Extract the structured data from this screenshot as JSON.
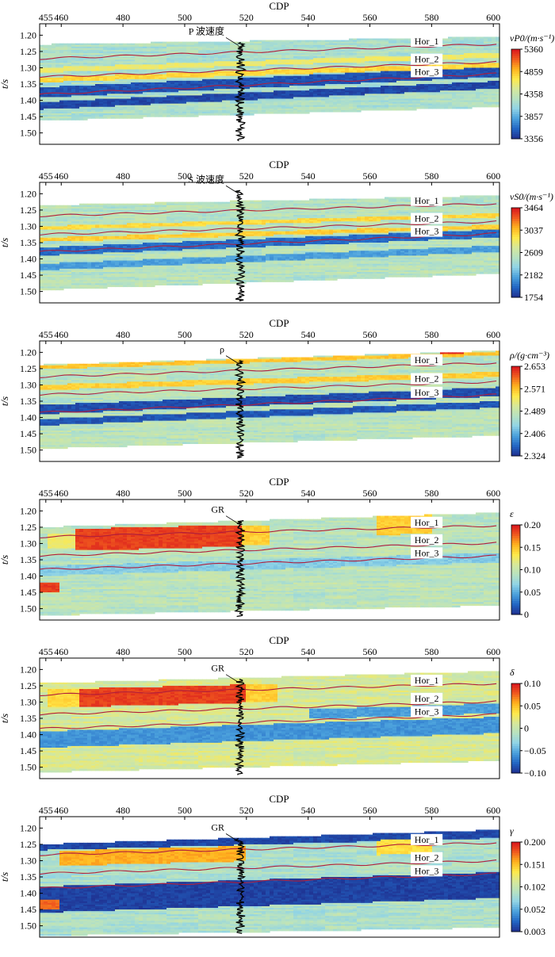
{
  "palette": {
    "jet": [
      "#1f2f8f",
      "#2266c4",
      "#4aa0dc",
      "#8fd3e6",
      "#b7e2c2",
      "#d6e89a",
      "#ffe94a",
      "#ffb21e",
      "#f05a1e",
      "#d8141e"
    ],
    "horizon_color": "#b01e3c",
    "log_color": "#000000"
  },
  "chart_data": [
    {
      "type": "heatmap",
      "id": "vp0",
      "title": "CDP",
      "xlabel": "CDP",
      "ylabel": "t/s",
      "xlim": [
        453,
        602
      ],
      "ylim": [
        1.165,
        1.535
      ],
      "x_ticks": [
        "455",
        "460",
        "480",
        "500",
        "520",
        "540",
        "560",
        "580",
        "600"
      ],
      "x_tick_values": [
        455,
        460,
        480,
        500,
        520,
        540,
        560,
        580,
        600
      ],
      "y_ticks": [
        "1.20",
        "1.25",
        "1.30",
        "1.35",
        "1.40",
        "1.45",
        "1.50"
      ],
      "y_tick_values": [
        1.2,
        1.25,
        1.3,
        1.35,
        1.4,
        1.45,
        1.5
      ],
      "colorbar": {
        "label": "vP0/(m·s⁻¹)",
        "ticks": [
          "5360",
          "4859",
          "4358",
          "3857",
          "3356"
        ]
      },
      "horizons": [
        {
          "name": "Hor_1",
          "start": 1.272,
          "end": 1.227
        },
        {
          "name": "Hor_2",
          "start": 1.328,
          "end": 1.282
        },
        {
          "name": "Hor_3",
          "start": 1.382,
          "end": 1.318
        }
      ],
      "log": {
        "label": "P 波速度",
        "cdp": 518,
        "top": 1.222,
        "bottom": 1.525
      },
      "data_top": [
        1.228,
        1.205
      ],
      "data_bottom": [
        1.462,
        1.42
      ],
      "base": 0.42,
      "anomalies": [
        {
          "cdp": [
            453,
            602
          ],
          "t": [
            1.36,
            1.392
          ],
          "v": 0.07,
          "follow": "Hor_3"
        },
        {
          "cdp": [
            453,
            602
          ],
          "t": [
            1.405,
            1.428
          ],
          "v": 0.05,
          "follow": "Hor_3"
        },
        {
          "cdp": [
            453,
            602
          ],
          "t": [
            1.3,
            1.315
          ],
          "v": 0.62,
          "follow": "Hor_2"
        },
        {
          "cdp": [
            453,
            602
          ],
          "t": [
            1.33,
            1.345
          ],
          "v": 0.7,
          "follow": "Hor_2"
        }
      ]
    },
    {
      "type": "heatmap",
      "id": "vs0",
      "title": "CDP",
      "xlabel": "CDP",
      "ylabel": "t/s",
      "xlim": [
        453,
        602
      ],
      "ylim": [
        1.165,
        1.535
      ],
      "x_ticks": [
        "455",
        "460",
        "480",
        "500",
        "520",
        "540",
        "560",
        "580",
        "600"
      ],
      "x_tick_values": [
        455,
        460,
        480,
        500,
        520,
        540,
        560,
        580,
        600
      ],
      "y_ticks": [
        "1.20",
        "1.25",
        "1.30",
        "1.35",
        "1.40",
        "1.45",
        "1.50"
      ],
      "y_tick_values": [
        1.2,
        1.25,
        1.3,
        1.35,
        1.4,
        1.45,
        1.5
      ],
      "colorbar": {
        "label": "vS0/(m·s⁻¹)",
        "ticks": [
          "3464",
          "3037",
          "2609",
          "2182",
          "1754"
        ]
      },
      "horizons": [
        {
          "name": "Hor_1",
          "start": 1.268,
          "end": 1.23
        },
        {
          "name": "Hor_2",
          "start": 1.325,
          "end": 1.285
        },
        {
          "name": "Hor_3",
          "start": 1.378,
          "end": 1.322
        }
      ],
      "log": {
        "label": "S 波速度",
        "cdp": 518,
        "top": 1.19,
        "bottom": 1.53
      },
      "data_top": [
        1.235,
        1.205
      ],
      "data_bottom": [
        1.495,
        1.445
      ],
      "base": 0.45,
      "anomalies": [
        {
          "cdp": [
            453,
            602
          ],
          "t": [
            1.365,
            1.39
          ],
          "v": 0.12,
          "follow": "Hor_3"
        },
        {
          "cdp": [
            453,
            602
          ],
          "t": [
            1.3,
            1.312
          ],
          "v": 0.7,
          "follow": "Hor_2"
        },
        {
          "cdp": [
            453,
            602
          ],
          "t": [
            1.335,
            1.348
          ],
          "v": 0.72,
          "follow": "Hor_2"
        },
        {
          "cdp": [
            453,
            602
          ],
          "t": [
            1.415,
            1.435
          ],
          "v": 0.22,
          "follow": "Hor_3"
        }
      ]
    },
    {
      "type": "heatmap",
      "id": "rho",
      "title": "CDP",
      "xlabel": "CDP",
      "ylabel": "t/s",
      "xlim": [
        453,
        602
      ],
      "ylim": [
        1.165,
        1.535
      ],
      "x_ticks": [
        "455",
        "460",
        "480",
        "500",
        "520",
        "540",
        "560",
        "580",
        "600"
      ],
      "x_tick_values": [
        455,
        460,
        480,
        500,
        520,
        540,
        560,
        580,
        600
      ],
      "y_ticks": [
        "1.20",
        "1.25",
        "1.30",
        "1.35",
        "1.40",
        "1.45",
        "1.50"
      ],
      "y_tick_values": [
        1.2,
        1.25,
        1.3,
        1.35,
        1.4,
        1.45,
        1.5
      ],
      "colorbar": {
        "label": "ρ/(g·cm⁻³)",
        "ticks": [
          "2.653",
          "2.571",
          "2.489",
          "2.406",
          "2.324"
        ]
      },
      "horizons": [
        {
          "name": "Hor_1",
          "start": 1.275,
          "end": 1.232
        },
        {
          "name": "Hor_2",
          "start": 1.33,
          "end": 1.29
        },
        {
          "name": "Hor_3",
          "start": 1.385,
          "end": 1.33
        }
      ],
      "log": {
        "label": "ρ",
        "cdp": 518,
        "top": 1.225,
        "bottom": 1.525
      },
      "data_top": [
        1.238,
        1.195
      ],
      "data_bottom": [
        1.495,
        1.455
      ],
      "base": 0.46,
      "anomalies": [
        {
          "cdp": [
            453,
            602
          ],
          "t": [
            1.362,
            1.39
          ],
          "v": 0.06,
          "follow": "Hor_3"
        },
        {
          "cdp": [
            453,
            602
          ],
          "t": [
            1.405,
            1.425
          ],
          "v": 0.08,
          "follow": "Hor_3"
        },
        {
          "cdp": [
            453,
            602
          ],
          "t": [
            1.3,
            1.316
          ],
          "v": 0.72,
          "follow": "Hor_2"
        },
        {
          "cdp": [
            453,
            602
          ],
          "t": [
            1.24,
            1.252
          ],
          "v": 0.74,
          "follow": "Hor_1"
        },
        {
          "cdp": [
            583,
            591
          ],
          "t": [
            1.192,
            1.205
          ],
          "v": 0.97,
          "follow": ""
        }
      ]
    },
    {
      "type": "heatmap",
      "id": "epsilon",
      "title": "CDP",
      "xlabel": "CDP",
      "ylabel": "t/s",
      "xlim": [
        453,
        602
      ],
      "ylim": [
        1.165,
        1.535
      ],
      "x_ticks": [
        "455",
        "460",
        "480",
        "500",
        "520",
        "540",
        "560",
        "580",
        "600"
      ],
      "x_tick_values": [
        455,
        460,
        480,
        500,
        520,
        540,
        560,
        580,
        600
      ],
      "y_ticks": [
        "1.20",
        "1.25",
        "1.30",
        "1.35",
        "1.40",
        "1.45",
        "1.50"
      ],
      "y_tick_values": [
        1.2,
        1.25,
        1.3,
        1.35,
        1.4,
        1.45,
        1.5
      ],
      "colorbar": {
        "label": "ε",
        "ticks": [
          "0.20",
          "0.15",
          "0.10",
          "0.05",
          "0"
        ]
      },
      "horizons": [
        {
          "name": "Hor_1",
          "start": 1.28,
          "end": 1.245
        },
        {
          "name": "Hor_2",
          "start": 1.338,
          "end": 1.298
        },
        {
          "name": "Hor_3",
          "start": 1.38,
          "end": 1.338
        }
      ],
      "log": {
        "label": "GR",
        "cdp": 518,
        "top": 1.23,
        "bottom": 1.525
      },
      "data_top": [
        1.25,
        1.205
      ],
      "data_bottom": [
        1.52,
        1.49
      ],
      "base": 0.46,
      "anomalies": [
        {
          "cdp": [
            464,
            519
          ],
          "t": [
            1.258,
            1.325
          ],
          "v": 0.93,
          "follow": "Hor_1"
        },
        {
          "cdp": [
            455,
            464
          ],
          "t": [
            1.272,
            1.318
          ],
          "v": 0.62,
          "follow": "Hor_1"
        },
        {
          "cdp": [
            519,
            527
          ],
          "t": [
            1.262,
            1.32
          ],
          "v": 0.72,
          "follow": "Hor_1"
        },
        {
          "cdp": [
            562,
            580
          ],
          "t": [
            1.24,
            1.3
          ],
          "v": 0.72,
          "follow": "Hor_1"
        },
        {
          "cdp": [
            453,
            602
          ],
          "t": [
            1.37,
            1.4
          ],
          "v": 0.32,
          "follow": "Hor_3"
        },
        {
          "cdp": [
            453,
            459
          ],
          "t": [
            1.42,
            1.452
          ],
          "v": 0.94,
          "follow": ""
        }
      ]
    },
    {
      "type": "heatmap",
      "id": "delta",
      "title": "CDP",
      "xlabel": "CDP",
      "ylabel": "t/s",
      "xlim": [
        453,
        602
      ],
      "ylim": [
        1.165,
        1.535
      ],
      "x_ticks": [
        "455",
        "460",
        "480",
        "500",
        "520",
        "540",
        "560",
        "580",
        "600"
      ],
      "x_tick_values": [
        455,
        460,
        480,
        500,
        520,
        540,
        560,
        580,
        600
      ],
      "y_ticks": [
        "1.20",
        "1.25",
        "1.30",
        "1.35",
        "1.40",
        "1.45",
        "1.50"
      ],
      "y_tick_values": [
        1.2,
        1.25,
        1.3,
        1.35,
        1.4,
        1.45,
        1.5
      ],
      "colorbar": {
        "label": "δ",
        "ticks": [
          "0.10",
          "0.05",
          "0",
          "−0.05",
          "−0.10"
        ]
      },
      "horizons": [
        {
          "name": "Hor_1",
          "start": 1.278,
          "end": 1.243
        },
        {
          "name": "Hor_2",
          "start": 1.338,
          "end": 1.298
        },
        {
          "name": "Hor_3",
          "start": 1.382,
          "end": 1.338
        }
      ],
      "log": {
        "label": "GR",
        "cdp": 518,
        "top": 1.23,
        "bottom": 1.525
      },
      "data_top": [
        1.242,
        1.205
      ],
      "data_bottom": [
        1.515,
        1.48
      ],
      "base": 0.55,
      "anomalies": [
        {
          "cdp": [
            466,
            520
          ],
          "t": [
            1.262,
            1.318
          ],
          "v": 0.93,
          "follow": "Hor_1"
        },
        {
          "cdp": [
            455,
            466
          ],
          "t": [
            1.262,
            1.318
          ],
          "v": 0.7,
          "follow": "Hor_1"
        },
        {
          "cdp": [
            520,
            530
          ],
          "t": [
            1.262,
            1.318
          ],
          "v": 0.72,
          "follow": "Hor_1"
        },
        {
          "cdp": [
            453,
            602
          ],
          "t": [
            1.39,
            1.44
          ],
          "v": 0.2,
          "follow": "Hor_3"
        },
        {
          "cdp": [
            540,
            602
          ],
          "t": [
            1.348,
            1.378
          ],
          "v": 0.22,
          "follow": "Hor_3"
        }
      ]
    },
    {
      "type": "heatmap",
      "id": "gamma",
      "title": "CDP",
      "xlabel": "CDP",
      "ylabel": "t/s",
      "xlim": [
        453,
        602
      ],
      "ylim": [
        1.165,
        1.535
      ],
      "x_ticks": [
        "455",
        "460",
        "480",
        "500",
        "520",
        "540",
        "560",
        "580",
        "600"
      ],
      "x_tick_values": [
        455,
        460,
        480,
        500,
        520,
        540,
        560,
        580,
        600
      ],
      "y_ticks": [
        "1.20",
        "1.25",
        "1.30",
        "1.35",
        "1.40",
        "1.45",
        "1.50"
      ],
      "y_tick_values": [
        1.2,
        1.25,
        1.3,
        1.35,
        1.4,
        1.45,
        1.5
      ],
      "colorbar": {
        "label": "γ",
        "ticks": [
          "0.200",
          "0.151",
          "0.102",
          "0.052",
          "0.003"
        ]
      },
      "horizons": [
        {
          "name": "Hor_1",
          "start": 1.282,
          "end": 1.245
        },
        {
          "name": "Hor_2",
          "start": 1.34,
          "end": 1.3
        },
        {
          "name": "Hor_3",
          "start": 1.385,
          "end": 1.34
        }
      ],
      "log": {
        "label": "GR",
        "cdp": 518,
        "top": 1.232,
        "bottom": 1.525
      },
      "data_top": [
        1.25,
        1.205
      ],
      "data_bottom": [
        1.53,
        1.505
      ],
      "base": 0.42,
      "anomalies": [
        {
          "cdp": [
            453,
            602
          ],
          "t": [
            1.24,
            1.268
          ],
          "v": 0.05,
          "follow": "Hor_1"
        },
        {
          "cdp": [
            460,
            520
          ],
          "t": [
            1.272,
            1.318
          ],
          "v": 0.78,
          "follow": "Hor_1"
        },
        {
          "cdp": [
            562,
            580
          ],
          "t": [
            1.265,
            1.31
          ],
          "v": 0.68,
          "follow": "Hor_1"
        },
        {
          "cdp": [
            453,
            602
          ],
          "t": [
            1.38,
            1.46
          ],
          "v": 0.04,
          "follow": "Hor_3"
        },
        {
          "cdp": [
            453,
            460
          ],
          "t": [
            1.418,
            1.45
          ],
          "v": 0.88,
          "follow": ""
        }
      ]
    }
  ]
}
